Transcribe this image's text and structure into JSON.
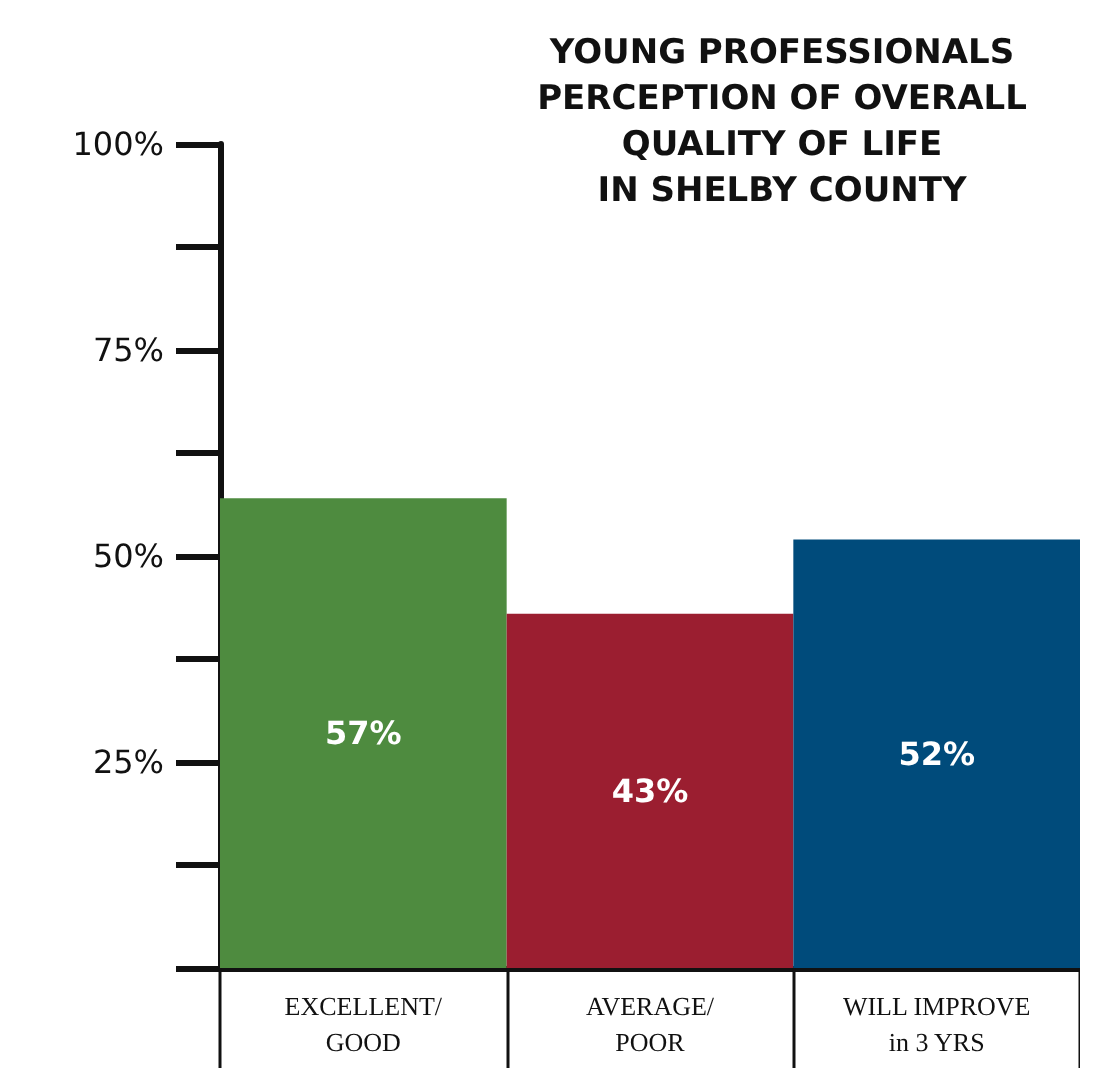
{
  "chart_data": {
    "type": "bar",
    "title": "YOUNG PROFESSIONALS\nPERCEPTION OF OVERALL\nQUALITY OF LIFE\nIN SHELBY COUNTY",
    "categories": [
      "EXCELLENT/\nGOOD",
      "AVERAGE/\nPOOR",
      "WILL IMPROVE\nin 3 YRS"
    ],
    "values": [
      57,
      43,
      52
    ],
    "colors": [
      "#4e8b3f",
      "#9b1e30",
      "#004b7b"
    ],
    "value_labels": [
      "57%",
      "43%",
      "52%"
    ],
    "ylim": [
      0,
      100
    ],
    "yticks": [
      {
        "value": 25,
        "label": "25%"
      },
      {
        "value": 50,
        "label": "50%"
      },
      {
        "value": 75,
        "label": "75%"
      },
      {
        "value": 100,
        "label": "100%"
      }
    ],
    "grid": false
  }
}
